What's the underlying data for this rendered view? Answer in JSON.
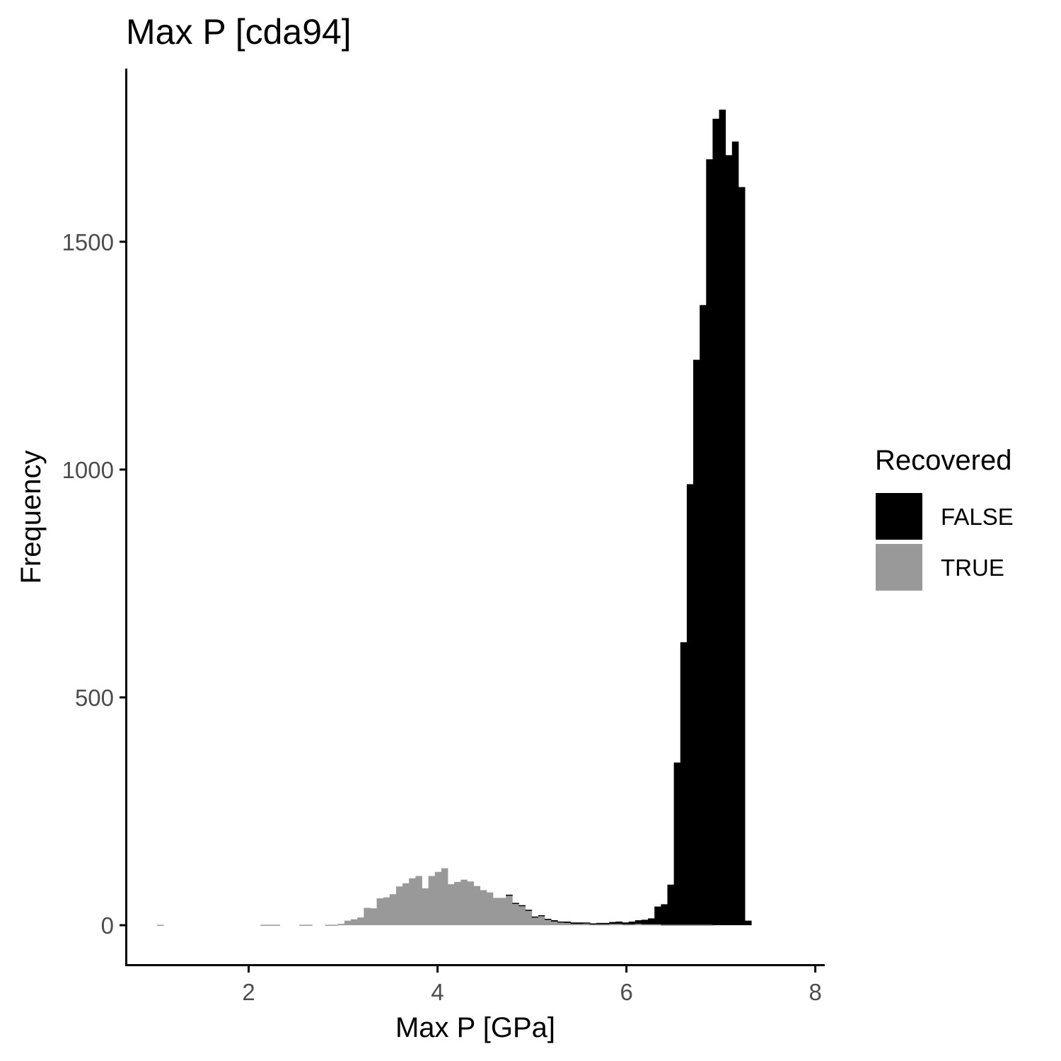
{
  "chart_data": {
    "type": "bar",
    "subtype": "stacked-histogram",
    "title": "Max P [cda94]",
    "xlabel": "Max P [GPa]",
    "ylabel": "Frequency",
    "xlim": [
      0.7,
      8.1
    ],
    "ylim": [
      -90,
      1880
    ],
    "x_ticks": [
      2,
      4,
      6,
      8
    ],
    "y_ticks": [
      0,
      500,
      1000,
      1500
    ],
    "bin_width": 0.0684,
    "grid": false,
    "legend": {
      "title": "Recovered",
      "position": "right",
      "entries": [
        {
          "label": "FALSE",
          "color": "#000000"
        },
        {
          "label": "TRUE",
          "color": "#999999"
        }
      ]
    },
    "x_start": 1.03,
    "series": [
      {
        "name": "FALSE",
        "color": "#000000",
        "values": [
          0,
          0,
          0,
          0,
          0,
          0,
          0,
          0,
          0,
          0,
          0,
          0,
          0,
          0,
          0,
          0,
          0,
          0,
          0,
          0,
          0,
          0,
          0,
          0,
          0,
          0,
          0,
          0,
          0,
          0,
          0,
          0,
          0,
          0,
          0,
          0,
          0,
          0,
          0,
          0,
          0,
          0,
          0,
          0,
          0,
          0,
          0,
          0,
          0,
          0,
          0,
          0,
          0,
          0,
          1,
          1,
          2,
          2,
          2,
          2,
          2,
          3,
          2,
          3,
          3,
          3,
          2,
          2,
          3,
          3,
          4,
          5,
          4,
          6,
          8,
          10,
          13,
          39,
          45,
          88,
          356,
          620,
          967,
          1240,
          1360,
          1680,
          1770,
          1790,
          1690,
          1720,
          1620,
          10
        ]
      },
      {
        "name": "TRUE",
        "color": "#999999",
        "values": [
          1,
          0,
          0,
          0,
          0,
          0,
          0,
          0,
          0,
          0,
          0,
          0,
          0,
          0,
          0,
          0,
          1,
          1,
          1,
          0,
          0,
          0,
          1,
          1,
          0,
          0,
          1,
          1,
          3,
          10,
          13,
          17,
          38,
          37,
          59,
          61,
          68,
          85,
          92,
          103,
          108,
          81,
          108,
          117,
          125,
          90,
          95,
          100,
          96,
          86,
          77,
          72,
          60,
          60,
          66,
          48,
          42,
          32,
          17,
          20,
          12,
          8,
          6,
          5,
          3,
          3,
          4,
          2,
          2,
          2,
          3,
          3,
          2,
          2,
          3,
          2,
          2,
          2,
          1,
          1,
          1,
          1,
          1,
          1,
          1,
          1,
          0,
          0,
          0,
          0,
          0,
          0
        ]
      }
    ]
  }
}
